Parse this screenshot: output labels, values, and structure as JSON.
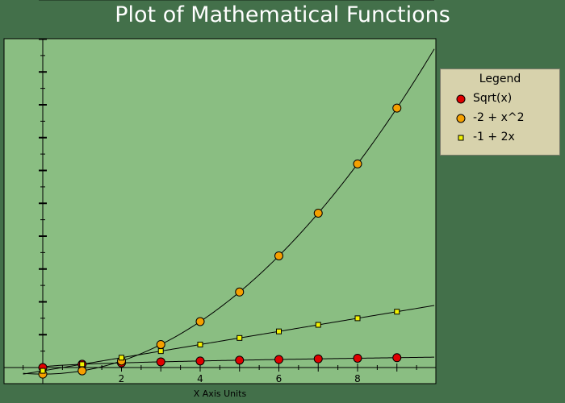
{
  "chart_data": {
    "type": "line",
    "title": "Plot of Mathematical Functions",
    "xlabel": "X Axis Units",
    "ylabel": "",
    "xlim": [
      -1,
      10
    ],
    "ylim": [
      -1,
      97
    ],
    "x_ticks": [
      2,
      4,
      6,
      8
    ],
    "grid": false,
    "legend_title": "Legend",
    "legend_position": "right",
    "series": [
      {
        "name": "Sqrt(x)",
        "marker": "circle",
        "color": "#e00000",
        "x": [
          0,
          1,
          2,
          3,
          4,
          5,
          6,
          7,
          8,
          9
        ],
        "y": [
          0,
          1,
          1.41,
          1.73,
          2,
          2.24,
          2.45,
          2.65,
          2.83,
          3
        ]
      },
      {
        "name": "-2 + x^2",
        "marker": "circle",
        "color": "#f5a000",
        "x": [
          0,
          1,
          2,
          3,
          4,
          5,
          6,
          7,
          8,
          9
        ],
        "y": [
          -2,
          -1,
          2,
          7,
          14,
          23,
          34,
          47,
          62,
          79
        ]
      },
      {
        "name": "-1 + 2x",
        "marker": "square",
        "color": "#f2f200",
        "x": [
          0,
          1,
          2,
          3,
          4,
          5,
          6,
          7,
          8,
          9
        ],
        "y": [
          -1,
          1,
          3,
          5,
          7,
          9,
          11,
          13,
          15,
          17
        ]
      }
    ]
  },
  "colors": {
    "background": "#43704a",
    "plot_area": "#8abe82",
    "legend_bg": "#d7d2ac"
  }
}
